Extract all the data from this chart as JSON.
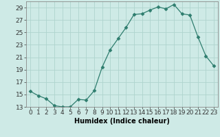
{
  "x": [
    0,
    1,
    2,
    3,
    4,
    5,
    6,
    7,
    8,
    9,
    10,
    11,
    12,
    13,
    14,
    15,
    16,
    17,
    18,
    19,
    20,
    21,
    22,
    23
  ],
  "y": [
    15.5,
    14.8,
    14.3,
    13.2,
    13.0,
    13.0,
    14.2,
    14.1,
    15.6,
    19.4,
    22.2,
    24.0,
    25.8,
    27.9,
    28.0,
    28.6,
    29.1,
    28.8,
    29.5,
    28.0,
    27.8,
    24.3,
    21.2,
    19.6
  ],
  "line_color": "#2e7d6e",
  "marker": "D",
  "marker_size": 2.5,
  "bg_color": "#ceeae6",
  "grid_color": "#aed4ce",
  "xlabel": "Humidex (Indice chaleur)",
  "ylim": [
    13,
    30
  ],
  "xlim": [
    -0.5,
    23.5
  ],
  "yticks": [
    13,
    15,
    17,
    19,
    21,
    23,
    25,
    27,
    29
  ],
  "xticks": [
    0,
    1,
    2,
    3,
    4,
    5,
    6,
    7,
    8,
    9,
    10,
    11,
    12,
    13,
    14,
    15,
    16,
    17,
    18,
    19,
    20,
    21,
    22,
    23
  ],
  "xtick_labels": [
    "0",
    "1",
    "2",
    "3",
    "4",
    "5",
    "6",
    "7",
    "8",
    "9",
    "10",
    "11",
    "12",
    "13",
    "14",
    "15",
    "16",
    "17",
    "18",
    "19",
    "20",
    "21",
    "22",
    "23"
  ],
  "label_fontsize": 7,
  "tick_fontsize": 6.5
}
